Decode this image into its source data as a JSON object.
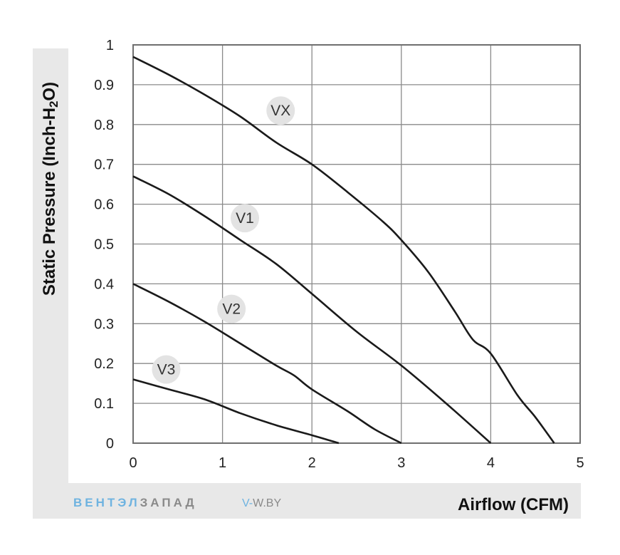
{
  "chart_data": {
    "type": "line",
    "title": "",
    "xlabel": "Airflow (CFM)",
    "ylabel_parts": [
      "Static Pressure (Inch-H",
      "2",
      "O)"
    ],
    "xlim": [
      0,
      5
    ],
    "ylim": [
      0,
      1
    ],
    "x_ticks": [
      "0",
      "1",
      "2",
      "3",
      "4",
      "5"
    ],
    "y_ticks": [
      "0",
      "0.1",
      "0.2",
      "0.3",
      "0.4",
      "0.5",
      "0.6",
      "0.7",
      "0.8",
      "0.9",
      "1"
    ],
    "grid": true,
    "series": [
      {
        "name": "VX",
        "label_at": [
          1.65,
          0.835
        ],
        "points": [
          [
            0,
            0.97
          ],
          [
            0.4,
            0.925
          ],
          [
            0.8,
            0.875
          ],
          [
            1.2,
            0.82
          ],
          [
            1.6,
            0.755
          ],
          [
            2.0,
            0.7
          ],
          [
            2.4,
            0.63
          ],
          [
            2.8,
            0.555
          ],
          [
            3.0,
            0.51
          ],
          [
            3.3,
            0.43
          ],
          [
            3.6,
            0.33
          ],
          [
            3.8,
            0.26
          ],
          [
            4.0,
            0.225
          ],
          [
            4.3,
            0.12
          ],
          [
            4.5,
            0.065
          ],
          [
            4.71,
            0.0
          ]
        ]
      },
      {
        "name": "V1",
        "label_at": [
          1.25,
          0.565
        ],
        "points": [
          [
            0,
            0.67
          ],
          [
            0.4,
            0.625
          ],
          [
            0.8,
            0.57
          ],
          [
            1.2,
            0.51
          ],
          [
            1.6,
            0.45
          ],
          [
            2.0,
            0.375
          ],
          [
            2.5,
            0.28
          ],
          [
            3.0,
            0.195
          ],
          [
            3.5,
            0.1
          ],
          [
            4.0,
            0.0
          ]
        ]
      },
      {
        "name": "V2",
        "label_at": [
          1.1,
          0.337
        ],
        "points": [
          [
            0,
            0.4
          ],
          [
            0.4,
            0.355
          ],
          [
            0.8,
            0.305
          ],
          [
            1.2,
            0.25
          ],
          [
            1.6,
            0.195
          ],
          [
            1.8,
            0.17
          ],
          [
            2.0,
            0.135
          ],
          [
            2.4,
            0.08
          ],
          [
            2.7,
            0.035
          ],
          [
            3.0,
            0.0
          ]
        ]
      },
      {
        "name": "V3",
        "label_at": [
          0.37,
          0.185
        ],
        "points": [
          [
            0,
            0.16
          ],
          [
            0.4,
            0.135
          ],
          [
            0.8,
            0.11
          ],
          [
            1.2,
            0.075
          ],
          [
            1.6,
            0.045
          ],
          [
            2.0,
            0.02
          ],
          [
            2.3,
            0.0
          ]
        ]
      }
    ]
  },
  "footer": {
    "brand_part1": "ВЕНТЭЛ",
    "brand_part2": "ЗАПАД",
    "brand_color1": "#6fb3e0",
    "brand_color2": "#8a8a8a",
    "site_part1": "V-",
    "site_part2": "W.BY",
    "site_color1": "#6fb3e0",
    "site_color2": "#8a8a8a"
  },
  "colors": {
    "panel": "#e8e8e8",
    "grid": "#8a8a8a",
    "curve": "#1a1a1a",
    "tag_bubble": "#e3e3e3"
  }
}
